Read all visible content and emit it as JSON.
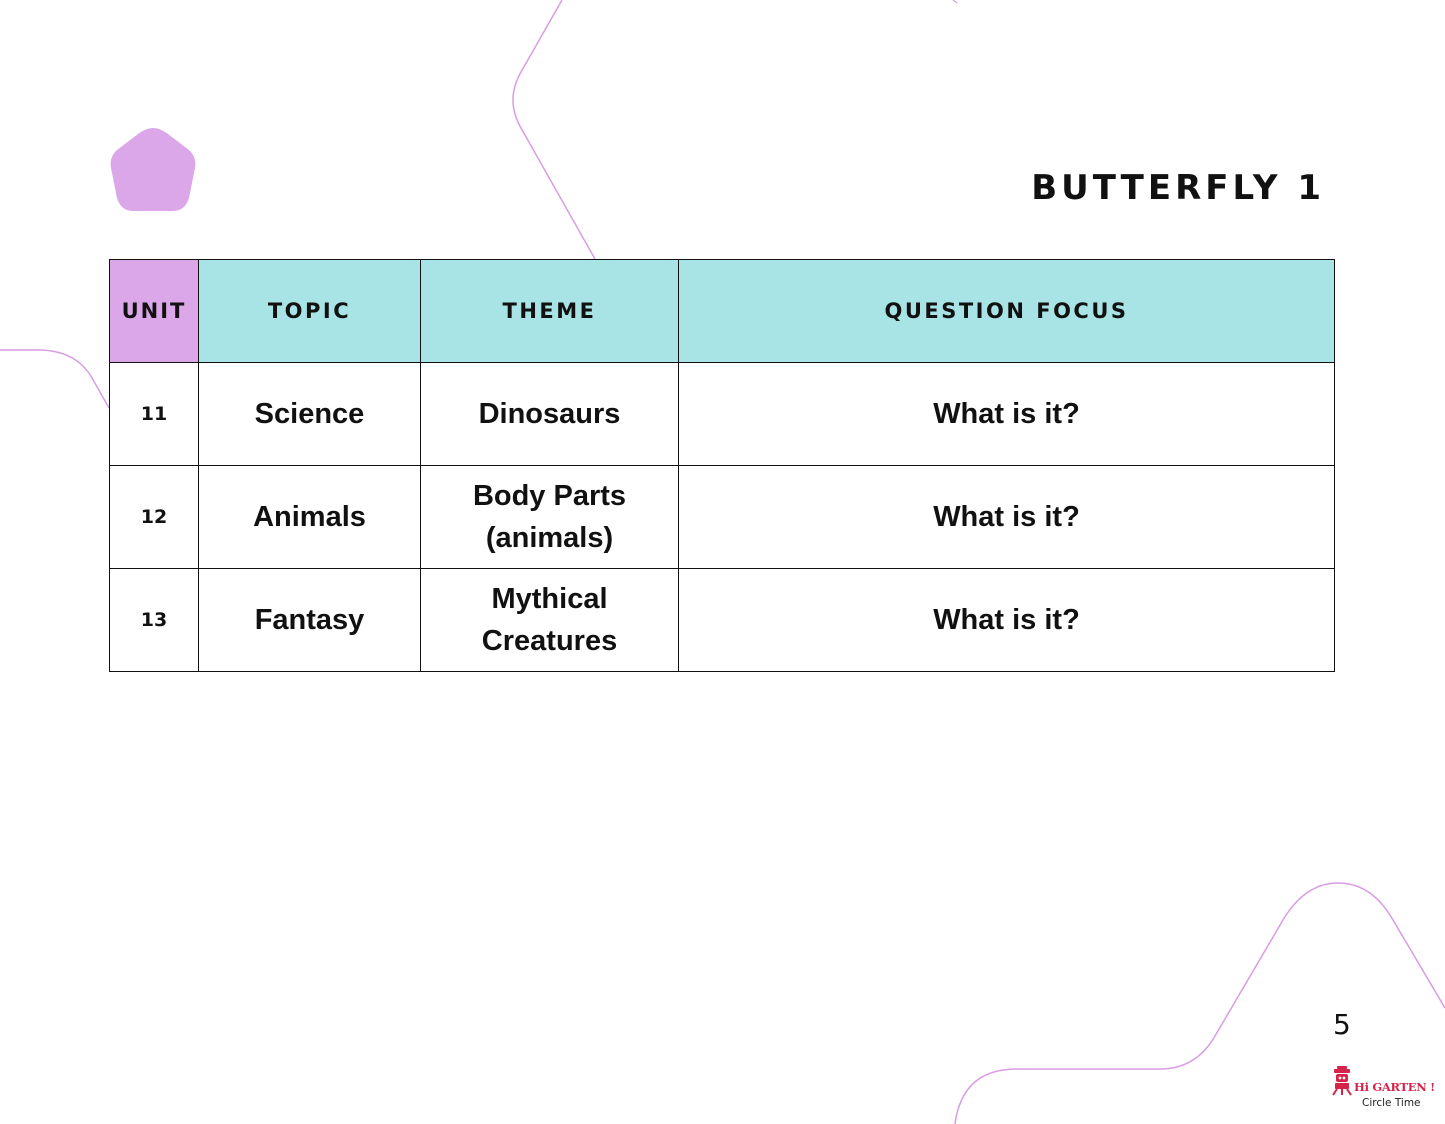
{
  "title": "BUTTERFLY 1",
  "page_number": "5",
  "colors": {
    "unit_header_bg": "#dca7e8",
    "header_bg": "#a8e4e6",
    "pentagon": "#dca7e8",
    "decor_line": "#d99ce3",
    "brand": "#d6234a"
  },
  "table": {
    "headers": {
      "unit": "UNIT",
      "topic": "TOPIC",
      "theme": "THEME",
      "question_focus": "QUESTION FOCUS"
    },
    "rows": [
      {
        "unit": "11",
        "topic": "Science",
        "theme_line1": "Dinosaurs",
        "theme_line2": "",
        "question_focus": "What is it?"
      },
      {
        "unit": "12",
        "topic": "Animals",
        "theme_line1": "Body Parts",
        "theme_line2": "(animals)",
        "question_focus": "What is it?"
      },
      {
        "unit": "13",
        "topic": "Fantasy",
        "theme_line1": "Mythical",
        "theme_line2": "Creatures",
        "question_focus": "What is it?"
      }
    ]
  },
  "brand": {
    "name": "Hi GARTEN !",
    "subtitle": "Circle Time",
    "icon": "robot-icon"
  },
  "decor": {
    "shape_icon": "pentagon-icon"
  }
}
